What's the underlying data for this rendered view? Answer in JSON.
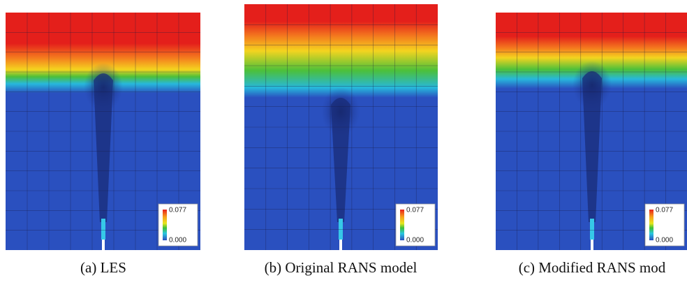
{
  "panels": [
    {
      "caption": "(a) LES",
      "colorbar": {
        "max": "0.077",
        "min": "0.000"
      }
    },
    {
      "caption": "(b) Original RANS model",
      "colorbar": {
        "max": "0.077",
        "min": "0.000"
      }
    },
    {
      "caption": "(c) Modified RANS mod",
      "colorbar": {
        "max": "0.077",
        "min": "0.000"
      }
    }
  ]
}
